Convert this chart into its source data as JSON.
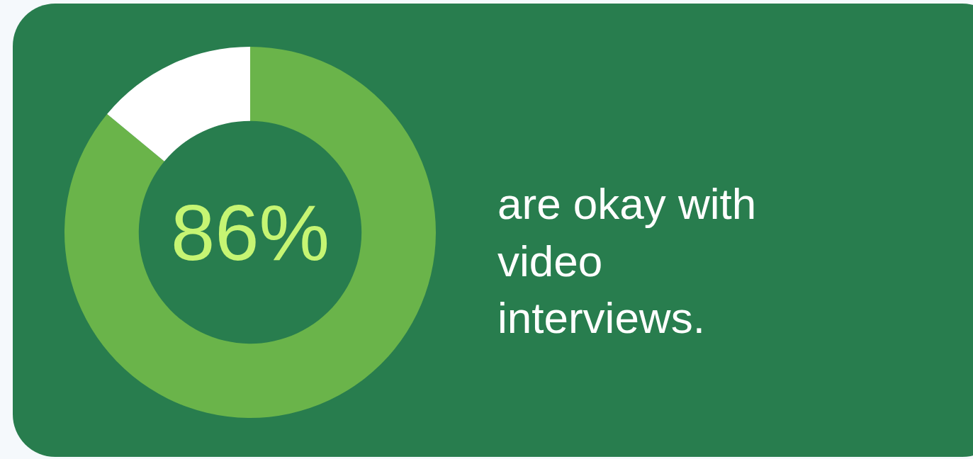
{
  "chart_data": {
    "type": "donut",
    "categories": [
      null,
      null
    ],
    "values": [
      86,
      14
    ],
    "colors": [
      "#6ab44a",
      "#ffffff"
    ],
    "value_labels": [
      "86%",
      null
    ],
    "annotations": [
      "are okay with\nvideo\ninterviews."
    ],
    "legend": false
  }
}
